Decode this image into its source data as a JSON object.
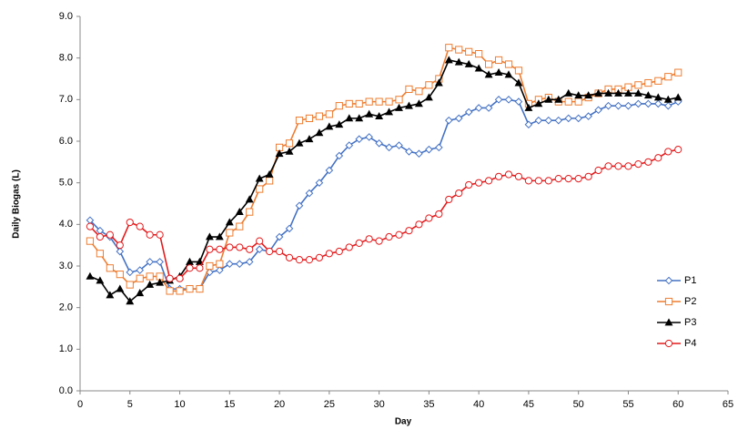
{
  "chart_data": {
    "type": "line",
    "x_label": "Day",
    "y_label": "Daily Biogas (L)",
    "x": [
      1,
      2,
      3,
      4,
      5,
      6,
      7,
      8,
      9,
      10,
      11,
      12,
      13,
      14,
      15,
      16,
      17,
      18,
      19,
      20,
      21,
      22,
      23,
      24,
      25,
      26,
      27,
      28,
      29,
      30,
      31,
      32,
      33,
      34,
      35,
      36,
      37,
      38,
      39,
      40,
      41,
      42,
      43,
      44,
      45,
      46,
      47,
      48,
      49,
      50,
      51,
      52,
      53,
      54,
      55,
      56,
      57,
      58,
      59,
      60
    ],
    "xlim": [
      0,
      65
    ],
    "xticks": [
      0,
      5,
      10,
      15,
      20,
      25,
      30,
      35,
      40,
      45,
      50,
      55,
      60,
      65
    ],
    "ylim": [
      0,
      9
    ],
    "yticks": [
      {
        "value": 0,
        "label": "0.0"
      },
      {
        "value": 1,
        "label": "1.0"
      },
      {
        "value": 2,
        "label": "2.0"
      },
      {
        "value": 3,
        "label": "3.0"
      },
      {
        "value": 4,
        "label": "4.0"
      },
      {
        "value": 5,
        "label": "5.0"
      },
      {
        "value": 6,
        "label": "6.0"
      },
      {
        "value": 7,
        "label": "7.0"
      },
      {
        "value": 8,
        "label": "8.0"
      },
      {
        "value": 9,
        "label": "9.0"
      }
    ],
    "grid": false,
    "legend": "right",
    "series": [
      {
        "name": "P1",
        "color": "#4472c4",
        "marker": "diamond",
        "marker_fill": "#ffffff",
        "values": [
          4.1,
          3.85,
          3.7,
          3.35,
          2.85,
          2.9,
          3.1,
          3.1,
          2.45,
          2.45,
          2.45,
          2.45,
          2.85,
          2.9,
          3.05,
          3.05,
          3.1,
          3.4,
          3.35,
          3.7,
          3.9,
          4.45,
          4.75,
          5.0,
          5.3,
          5.65,
          5.9,
          6.05,
          6.1,
          5.95,
          5.85,
          5.9,
          5.75,
          5.7,
          5.8,
          5.85,
          6.5,
          6.55,
          6.7,
          6.8,
          6.8,
          7.0,
          7.0,
          6.95,
          6.4,
          6.5,
          6.5,
          6.5,
          6.55,
          6.55,
          6.6,
          6.75,
          6.85,
          6.85,
          6.85,
          6.9,
          6.9,
          6.9,
          6.85,
          6.95
        ]
      },
      {
        "name": "P2",
        "color": "#ed7d31",
        "marker": "square",
        "marker_fill": "#ffffff",
        "values": [
          3.6,
          3.3,
          2.95,
          2.8,
          2.55,
          2.7,
          2.75,
          2.75,
          2.4,
          2.4,
          2.45,
          2.45,
          3.0,
          3.05,
          3.8,
          3.95,
          4.3,
          4.85,
          5.05,
          5.85,
          5.95,
          6.5,
          6.55,
          6.6,
          6.65,
          6.85,
          6.9,
          6.9,
          6.95,
          6.95,
          6.95,
          7.0,
          7.25,
          7.2,
          7.35,
          7.5,
          8.25,
          8.2,
          8.15,
          8.1,
          7.85,
          7.95,
          7.85,
          7.7,
          6.9,
          7.0,
          7.05,
          6.95,
          6.95,
          6.95,
          7.05,
          7.15,
          7.25,
          7.25,
          7.3,
          7.35,
          7.4,
          7.45,
          7.55,
          7.65
        ]
      },
      {
        "name": "P3",
        "color": "#000000",
        "marker": "triangle",
        "marker_fill": "#000000",
        "values": [
          2.75,
          2.65,
          2.3,
          2.45,
          2.15,
          2.35,
          2.55,
          2.6,
          2.65,
          2.75,
          3.1,
          3.1,
          3.7,
          3.7,
          4.05,
          4.3,
          4.6,
          5.1,
          5.2,
          5.7,
          5.75,
          5.95,
          6.05,
          6.2,
          6.35,
          6.4,
          6.55,
          6.55,
          6.65,
          6.6,
          6.7,
          6.8,
          6.85,
          6.9,
          7.05,
          7.4,
          7.95,
          7.9,
          7.85,
          7.75,
          7.6,
          7.65,
          7.6,
          7.4,
          6.8,
          6.9,
          7.0,
          7.0,
          7.15,
          7.1,
          7.1,
          7.15,
          7.15,
          7.15,
          7.15,
          7.15,
          7.1,
          7.05,
          7.0,
          7.05
        ]
      },
      {
        "name": "P4",
        "color": "#e31a1c",
        "marker": "circle",
        "marker_fill": "#ffffff",
        "values": [
          3.95,
          3.7,
          3.75,
          3.5,
          4.05,
          3.95,
          3.75,
          3.75,
          2.7,
          2.7,
          2.95,
          2.95,
          3.4,
          3.4,
          3.45,
          3.45,
          3.4,
          3.6,
          3.35,
          3.35,
          3.2,
          3.15,
          3.15,
          3.2,
          3.3,
          3.35,
          3.45,
          3.55,
          3.65,
          3.6,
          3.7,
          3.75,
          3.85,
          4.0,
          4.15,
          4.25,
          4.6,
          4.75,
          4.95,
          5.0,
          5.05,
          5.15,
          5.2,
          5.15,
          5.05,
          5.05,
          5.05,
          5.1,
          5.1,
          5.1,
          5.15,
          5.3,
          5.4,
          5.4,
          5.4,
          5.45,
          5.5,
          5.6,
          5.75,
          5.8
        ]
      }
    ]
  }
}
